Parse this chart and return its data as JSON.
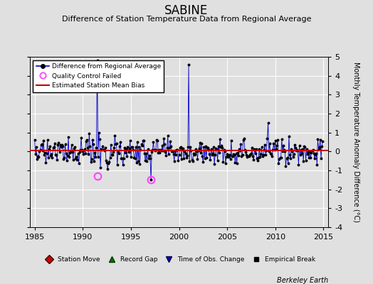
{
  "title": "SABINE",
  "subtitle": "Difference of Station Temperature Data from Regional Average",
  "ylabel": "Monthly Temperature Anomaly Difference (°C)",
  "xlabel_ticks": [
    1985,
    1990,
    1995,
    2000,
    2005,
    2010,
    2015
  ],
  "ylim": [
    -4,
    5
  ],
  "yticks": [
    -4,
    -3,
    -2,
    -1,
    0,
    1,
    2,
    3,
    4,
    5
  ],
  "xlim": [
    1984.5,
    2015.5
  ],
  "mean_bias": 0.05,
  "line_color": "#0000cc",
  "bias_color": "#cc0000",
  "qc_color": "#ff44ff",
  "bg_color": "#e0e0e0",
  "grid_color": "#ffffff",
  "footer": "Berkeley Earth",
  "title_fontsize": 12,
  "subtitle_fontsize": 8,
  "tick_fontsize": 8,
  "ylabel_fontsize": 7
}
